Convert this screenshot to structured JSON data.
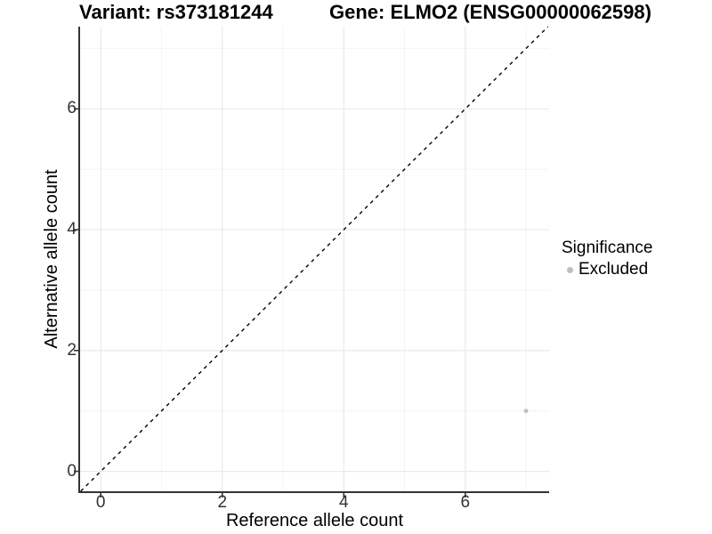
{
  "chart_data": {
    "type": "scatter",
    "title_left": "Variant: rs373181244",
    "title_right": "Gene: ELMO2 (ENSG00000062598)",
    "xlabel": "Reference allele count",
    "ylabel": "Alternative allele count",
    "xlim": [
      -0.34,
      7.38
    ],
    "ylim": [
      -0.33,
      7.36
    ],
    "x_ticks": {
      "values": [
        0,
        2,
        4,
        6
      ],
      "labels": [
        "0",
        "2",
        "4",
        "6"
      ]
    },
    "y_ticks": {
      "values": [
        0,
        2,
        4,
        6
      ],
      "labels": [
        "0",
        "2",
        "4",
        "6"
      ]
    },
    "x_minor": [
      1,
      3,
      5,
      7
    ],
    "y_minor": [
      1,
      3,
      5,
      7
    ],
    "grid": true,
    "legend_position": "right",
    "series": [
      {
        "name": "Excluded",
        "color": "#bebebe",
        "points": [
          {
            "x": 7,
            "y": 1
          }
        ]
      }
    ],
    "reference_line": {
      "slope": 1,
      "intercept": 0,
      "style": "dashed",
      "color": "#000000",
      "width": 1.4
    },
    "colors": {
      "grid_major": "#e9e9e9",
      "grid_minor": "#f4f4f4",
      "axis": "#333333",
      "tick_text": "#333333",
      "point": "#bebebe"
    },
    "point_radius": 2.4
  },
  "legend": {
    "title": "Significance",
    "items": [
      {
        "label": "Excluded",
        "color": "#bebebe"
      }
    ]
  }
}
